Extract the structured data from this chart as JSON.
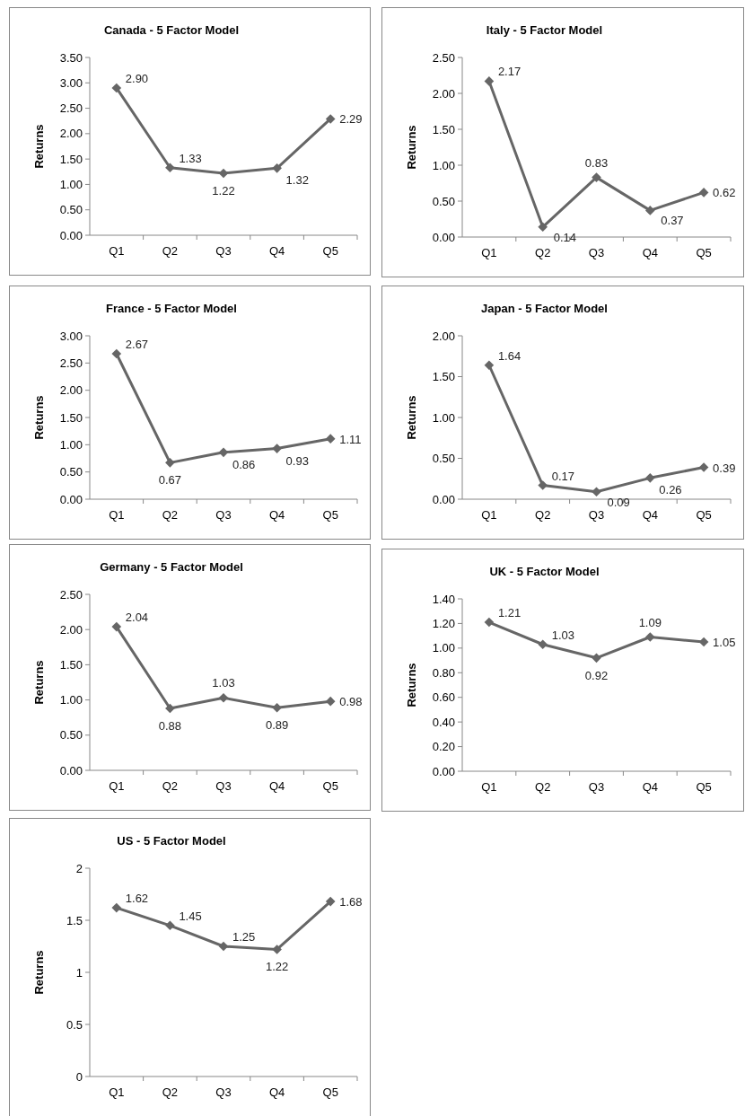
{
  "chart_data": [
    {
      "type": "line",
      "title": "Canada - 5 Factor Model",
      "ylabel": "Returns",
      "categories": [
        "Q1",
        "Q2",
        "Q3",
        "Q4",
        "Q5"
      ],
      "series": [
        {
          "color": "#666666",
          "values": [
            2.9,
            1.33,
            1.22,
            1.32,
            2.29
          ],
          "value_labels": [
            "2.90",
            "1.33",
            "1.22",
            "1.32",
            "2.29"
          ]
        }
      ],
      "ylim": [
        0,
        3.5
      ],
      "yticks": [
        {
          "value": 0,
          "label": "0.00"
        },
        {
          "value": 0.5,
          "label": "0.50"
        },
        {
          "value": 1,
          "label": "1.00"
        },
        {
          "value": 1.5,
          "label": "1.50"
        },
        {
          "value": 2,
          "label": "2.00"
        },
        {
          "value": 2.5,
          "label": "2.50"
        },
        {
          "value": 3,
          "label": "3.00"
        },
        {
          "value": 3.5,
          "label": "3.50"
        }
      ],
      "marker": "diamond"
    },
    {
      "type": "line",
      "title": "Italy - 5 Factor Model",
      "ylabel": "Returns",
      "categories": [
        "Q1",
        "Q2",
        "Q3",
        "Q4",
        "Q5"
      ],
      "series": [
        {
          "color": "#666666",
          "values": [
            2.17,
            0.14,
            0.83,
            0.37,
            0.62
          ],
          "value_labels": [
            "2.17",
            "0.14",
            "0.83",
            "0.37",
            "0.62"
          ]
        }
      ],
      "ylim": [
        0,
        2.5
      ],
      "yticks": [
        {
          "value": 0,
          "label": "0.00"
        },
        {
          "value": 0.5,
          "label": "0.50"
        },
        {
          "value": 1,
          "label": "1.00"
        },
        {
          "value": 1.5,
          "label": "1.50"
        },
        {
          "value": 2,
          "label": "2.00"
        },
        {
          "value": 2.5,
          "label": "2.50"
        }
      ],
      "marker": "diamond"
    },
    {
      "type": "line",
      "title": "France - 5 Factor Model",
      "ylabel": "Returns",
      "categories": [
        "Q1",
        "Q2",
        "Q3",
        "Q4",
        "Q5"
      ],
      "series": [
        {
          "color": "#666666",
          "values": [
            2.67,
            0.67,
            0.86,
            0.93,
            1.11
          ],
          "value_labels": [
            "2.67",
            "0.67",
            "0.86",
            "0.93",
            "1.11"
          ]
        }
      ],
      "ylim": [
        0,
        3
      ],
      "yticks": [
        {
          "value": 0,
          "label": "0.00"
        },
        {
          "value": 0.5,
          "label": "0.50"
        },
        {
          "value": 1,
          "label": "1.00"
        },
        {
          "value": 1.5,
          "label": "1.50"
        },
        {
          "value": 2,
          "label": "2.00"
        },
        {
          "value": 2.5,
          "label": "2.50"
        },
        {
          "value": 3,
          "label": "3.00"
        }
      ],
      "marker": "diamond"
    },
    {
      "type": "line",
      "title": "Japan - 5 Factor Model",
      "ylabel": "Returns",
      "categories": [
        "Q1",
        "Q2",
        "Q3",
        "Q4",
        "Q5"
      ],
      "series": [
        {
          "color": "#666666",
          "values": [
            1.64,
            0.17,
            0.09,
            0.26,
            0.39
          ],
          "value_labels": [
            "1.64",
            "0.17",
            "0.09",
            "0.26",
            "0.39"
          ]
        }
      ],
      "ylim": [
        0,
        2
      ],
      "yticks": [
        {
          "value": 0,
          "label": "0.00"
        },
        {
          "value": 0.5,
          "label": "0.50"
        },
        {
          "value": 1,
          "label": "1.00"
        },
        {
          "value": 1.5,
          "label": "1.50"
        },
        {
          "value": 2,
          "label": "2.00"
        }
      ],
      "marker": "diamond"
    },
    {
      "type": "line",
      "title": "Germany - 5 Factor Model",
      "ylabel": "Returns",
      "categories": [
        "Q1",
        "Q2",
        "Q3",
        "Q4",
        "Q5"
      ],
      "series": [
        {
          "color": "#666666",
          "values": [
            2.04,
            0.88,
            1.03,
            0.89,
            0.98
          ],
          "value_labels": [
            "2.04",
            "0.88",
            "1.03",
            "0.89",
            "0.98"
          ]
        }
      ],
      "ylim": [
        0,
        2.5
      ],
      "yticks": [
        {
          "value": 0,
          "label": "0.00"
        },
        {
          "value": 0.5,
          "label": "0.50"
        },
        {
          "value": 1,
          "label": "1.00"
        },
        {
          "value": 1.5,
          "label": "1.50"
        },
        {
          "value": 2,
          "label": "2.00"
        },
        {
          "value": 2.5,
          "label": "2.50"
        }
      ],
      "marker": "diamond"
    },
    {
      "type": "line",
      "title": "UK - 5 Factor Model",
      "ylabel": "Returns",
      "categories": [
        "Q1",
        "Q2",
        "Q3",
        "Q4",
        "Q5"
      ],
      "series": [
        {
          "color": "#666666",
          "values": [
            1.21,
            1.03,
            0.92,
            1.09,
            1.05
          ],
          "value_labels": [
            "1.21",
            "1.03",
            "0.92",
            "1.09",
            "1.05"
          ]
        }
      ],
      "ylim": [
        0,
        1.4
      ],
      "yticks": [
        {
          "value": 0,
          "label": "0.00"
        },
        {
          "value": 0.2,
          "label": "0.20"
        },
        {
          "value": 0.4,
          "label": "0.40"
        },
        {
          "value": 0.6,
          "label": "0.60"
        },
        {
          "value": 0.8,
          "label": "0.80"
        },
        {
          "value": 1,
          "label": "1.00"
        },
        {
          "value": 1.2,
          "label": "1.20"
        },
        {
          "value": 1.4,
          "label": "1.40"
        }
      ],
      "marker": "diamond"
    },
    {
      "type": "line",
      "title": "US - 5 Factor Model",
      "ylabel": "Returns",
      "categories": [
        "Q1",
        "Q2",
        "Q3",
        "Q4",
        "Q5"
      ],
      "series": [
        {
          "color": "#666666",
          "values": [
            1.62,
            1.45,
            1.25,
            1.22,
            1.68
          ],
          "value_labels": [
            "1.62",
            "1.45",
            "1.25",
            "1.22",
            "1.68"
          ]
        }
      ],
      "ylim": [
        0,
        2
      ],
      "yticks": [
        0,
        0.5,
        1,
        1.5,
        2
      ],
      "marker": "diamond"
    }
  ]
}
